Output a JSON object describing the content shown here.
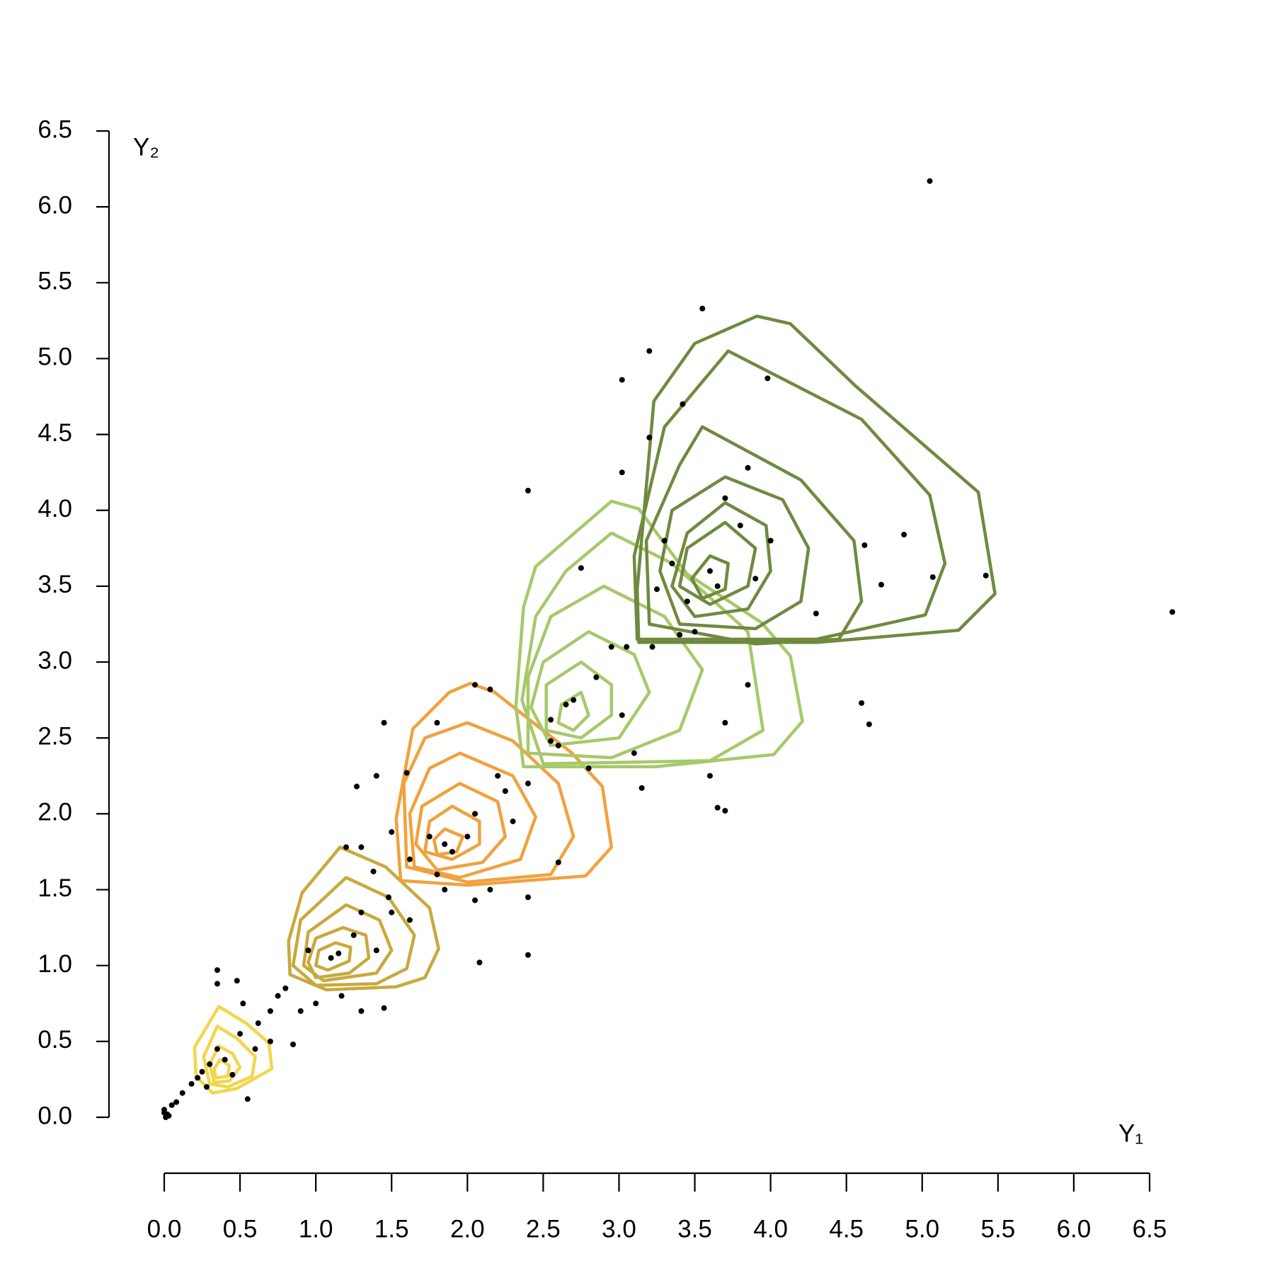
{
  "chart_data": {
    "type": "scatter",
    "x_label": "Y₁",
    "y_label": "Y₂",
    "xlim": [
      0,
      6.5
    ],
    "ylim": [
      0,
      6.5
    ],
    "xticks": [
      {
        "value": 0,
        "label": "0.0"
      },
      0.5,
      {
        "value": 1,
        "label": "1.0"
      },
      1.5,
      {
        "value": 2,
        "label": "2.0"
      },
      2.5,
      {
        "value": 3,
        "label": "3.0"
      },
      3.5,
      {
        "value": 4,
        "label": "4.0"
      },
      4.5,
      {
        "value": 5,
        "label": "5.0"
      },
      5.5,
      {
        "value": 6,
        "label": "6.0"
      },
      6.5
    ],
    "yticks": [
      {
        "value": 0,
        "label": "0.0"
      },
      0.5,
      {
        "value": 1,
        "label": "1.0"
      },
      1.5,
      {
        "value": 2,
        "label": "2.0"
      },
      2.5,
      {
        "value": 3,
        "label": "3.0"
      },
      3.5,
      {
        "value": 4,
        "label": "4.0"
      },
      4.5,
      {
        "value": 5,
        "label": "5.0"
      },
      5.5,
      {
        "value": 6,
        "label": "6.0"
      },
      6.5
    ],
    "points": {
      "color": "#000000",
      "x": [
        0.0,
        0.01,
        0.02,
        0.03,
        0.0,
        0.05,
        0.08,
        0.12,
        0.18,
        0.22,
        0.25,
        0.3,
        0.35,
        0.4,
        0.28,
        0.45,
        0.55,
        0.6,
        0.5,
        0.62,
        0.7,
        0.75,
        0.7,
        0.85,
        0.35,
        0.35,
        0.48,
        0.52,
        0.8,
        0.9,
        1.0,
        1.17,
        1.3,
        1.45,
        0.95,
        1.1,
        1.15,
        1.25,
        1.3,
        1.4,
        1.5,
        1.62,
        1.48,
        1.38,
        1.2,
        1.3,
        1.5,
        1.62,
        1.6,
        1.45,
        1.27,
        1.4,
        1.8,
        1.85,
        2.05,
        2.15,
        2.4,
        2.4,
        2.08,
        2.6,
        1.75,
        1.85,
        1.9,
        2.0,
        2.05,
        2.2,
        2.4,
        2.3,
        2.25,
        1.8,
        2.05,
        2.15,
        2.55,
        2.4,
        2.75,
        2.65,
        2.7,
        2.85,
        2.95,
        3.02,
        2.55,
        2.6,
        2.8,
        3.1,
        3.05,
        3.22,
        3.2,
        3.02,
        3.2,
        3.42,
        3.02,
        3.3,
        3.35,
        3.45,
        3.6,
        3.65,
        3.4,
        3.55,
        3.7,
        3.8,
        3.85,
        3.9,
        4.0,
        3.98,
        3.7,
        3.65,
        3.6,
        3.7,
        3.85,
        4.3,
        4.62,
        4.6,
        4.65,
        4.73,
        4.88,
        5.05,
        5.07,
        5.42,
        6.65,
        3.15,
        3.5,
        3.25
      ],
      "y": [
        0.05,
        0.0,
        0.02,
        0.01,
        0.03,
        0.08,
        0.1,
        0.16,
        0.22,
        0.26,
        0.3,
        0.35,
        0.45,
        0.38,
        0.2,
        0.28,
        0.12,
        0.45,
        0.55,
        0.62,
        0.7,
        0.8,
        0.5,
        0.48,
        0.97,
        0.88,
        0.9,
        0.75,
        0.85,
        0.7,
        0.75,
        0.8,
        0.7,
        0.72,
        1.1,
        1.05,
        1.08,
        1.2,
        1.35,
        1.1,
        1.35,
        1.3,
        1.45,
        1.62,
        1.78,
        1.78,
        1.88,
        1.7,
        2.27,
        2.6,
        2.18,
        2.25,
        1.6,
        1.5,
        1.43,
        1.5,
        1.45,
        1.07,
        1.02,
        1.68,
        1.85,
        1.8,
        1.75,
        1.85,
        2.0,
        2.25,
        2.2,
        1.95,
        2.15,
        2.6,
        2.85,
        2.82,
        2.62,
        4.13,
        3.62,
        2.72,
        2.75,
        2.9,
        3.1,
        2.65,
        2.48,
        2.45,
        2.3,
        2.4,
        3.1,
        3.1,
        4.48,
        4.86,
        5.05,
        4.7,
        4.25,
        3.8,
        3.65,
        3.4,
        3.6,
        3.5,
        3.18,
        5.33,
        4.08,
        3.9,
        4.28,
        3.55,
        3.8,
        4.87,
        2.02,
        2.04,
        2.25,
        2.6,
        2.85,
        3.32,
        3.77,
        2.73,
        2.59,
        3.51,
        3.84,
        6.17,
        3.56,
        3.57,
        3.33,
        2.17,
        3.2,
        3.48
      ]
    },
    "contours": [
      {
        "color": "#f3d54c",
        "levels": [
          {
            "x": [
              0.36,
              0.54,
              0.69,
              0.71,
              0.48,
              0.32,
              0.21,
              0.2
            ],
            "y": [
              0.73,
              0.62,
              0.49,
              0.32,
              0.19,
              0.16,
              0.27,
              0.46
            ]
          },
          {
            "x": [
              0.35,
              0.48,
              0.6,
              0.58,
              0.42,
              0.3,
              0.26
            ],
            "y": [
              0.6,
              0.52,
              0.4,
              0.27,
              0.2,
              0.22,
              0.4
            ]
          },
          {
            "x": [
              0.36,
              0.45,
              0.5,
              0.43,
              0.33,
              0.3
            ],
            "y": [
              0.47,
              0.42,
              0.33,
              0.24,
              0.23,
              0.35
            ]
          },
          {
            "x": [
              0.37,
              0.43,
              0.42,
              0.34,
              0.33
            ],
            "y": [
              0.38,
              0.34,
              0.27,
              0.26,
              0.32
            ]
          }
        ]
      },
      {
        "color": "#c8a93c",
        "levels": [
          {
            "x": [
              1.16,
              1.46,
              1.75,
              1.81,
              1.72,
              1.53,
              1.07,
              0.83,
              0.82,
              0.91
            ],
            "y": [
              1.78,
              1.65,
              1.38,
              1.11,
              0.92,
              0.86,
              0.84,
              0.94,
              1.16,
              1.48
            ]
          },
          {
            "x": [
              1.2,
              1.48,
              1.65,
              1.6,
              1.4,
              1.0,
              0.85,
              0.9
            ],
            "y": [
              1.58,
              1.45,
              1.2,
              0.98,
              0.88,
              0.87,
              1.0,
              1.3
            ]
          },
          {
            "x": [
              1.2,
              1.42,
              1.5,
              1.4,
              1.05,
              0.92,
              0.95
            ],
            "y": [
              1.4,
              1.3,
              1.1,
              0.95,
              0.9,
              1.0,
              1.22
            ]
          },
          {
            "x": [
              1.18,
              1.33,
              1.35,
              1.22,
              1.0,
              0.95,
              1.0
            ],
            "y": [
              1.25,
              1.2,
              1.05,
              0.95,
              0.92,
              1.02,
              1.18
            ]
          },
          {
            "x": [
              1.13,
              1.23,
              1.22,
              1.08,
              1.0,
              1.02
            ],
            "y": [
              1.15,
              1.12,
              1.03,
              0.97,
              1.0,
              1.1
            ]
          }
        ]
      },
      {
        "color": "#f0a23e",
        "levels": [
          {
            "x": [
              2.02,
              2.18,
              2.69,
              2.89,
              2.95,
              2.78,
              2.0,
              1.56,
              1.53,
              1.64,
              1.88
            ],
            "y": [
              2.86,
              2.8,
              2.4,
              2.18,
              1.78,
              1.59,
              1.53,
              1.56,
              1.97,
              2.56,
              2.8
            ]
          },
          {
            "x": [
              2.0,
              2.3,
              2.6,
              2.7,
              2.55,
              2.0,
              1.6,
              1.58,
              1.72
            ],
            "y": [
              2.6,
              2.48,
              2.2,
              1.85,
              1.6,
              1.55,
              1.65,
              2.2,
              2.5
            ]
          },
          {
            "x": [
              1.95,
              2.3,
              2.45,
              2.35,
              1.95,
              1.65,
              1.62,
              1.75
            ],
            "y": [
              2.4,
              2.25,
              1.98,
              1.7,
              1.58,
              1.65,
              2.0,
              2.3
            ]
          },
          {
            "x": [
              1.95,
              2.2,
              2.25,
              2.1,
              1.8,
              1.66,
              1.7
            ],
            "y": [
              2.2,
              2.08,
              1.85,
              1.68,
              1.63,
              1.8,
              2.05
            ]
          },
          {
            "x": [
              1.9,
              2.08,
              2.08,
              1.9,
              1.72,
              1.75
            ],
            "y": [
              2.05,
              1.95,
              1.8,
              1.7,
              1.75,
              1.95
            ]
          },
          {
            "x": [
              1.85,
              1.97,
              1.93,
              1.8,
              1.78
            ],
            "y": [
              1.9,
              1.85,
              1.75,
              1.73,
              1.83
            ]
          }
        ]
      },
      {
        "color": "#a6c96a",
        "levels": [
          {
            "x": [
              2.95,
              3.13,
              3.45,
              3.94,
              4.13,
              4.21,
              4.02,
              3.24,
              2.37,
              2.32,
              2.37,
              2.45
            ],
            "y": [
              4.06,
              4.01,
              3.58,
              3.26,
              3.04,
              2.61,
              2.39,
              2.31,
              2.31,
              2.71,
              3.36,
              3.63
            ]
          },
          {
            "x": [
              2.95,
              3.35,
              3.85,
              3.95,
              3.6,
              2.5,
              2.36,
              2.45,
              2.65
            ],
            "y": [
              3.85,
              3.65,
              3.2,
              2.55,
              2.35,
              2.33,
              2.75,
              3.3,
              3.6
            ]
          },
          {
            "x": [
              2.9,
              3.3,
              3.55,
              3.4,
              2.95,
              2.4,
              2.4,
              2.55
            ],
            "y": [
              3.5,
              3.3,
              2.95,
              2.55,
              2.37,
              2.4,
              2.9,
              3.3
            ]
          },
          {
            "x": [
              2.8,
              3.1,
              3.2,
              3.0,
              2.55,
              2.42,
              2.5
            ],
            "y": [
              3.2,
              3.05,
              2.8,
              2.5,
              2.45,
              2.7,
              3.0
            ]
          },
          {
            "x": [
              2.75,
              2.95,
              2.95,
              2.75,
              2.52,
              2.52
            ],
            "y": [
              3.0,
              2.85,
              2.65,
              2.5,
              2.55,
              2.85
            ]
          },
          {
            "x": [
              2.75,
              2.8,
              2.7,
              2.6,
              2.62
            ],
            "y": [
              2.8,
              2.65,
              2.55,
              2.6,
              2.72
            ]
          }
        ]
      },
      {
        "color": "#6f8a3f",
        "levels": [
          {
            "x": [
              3.91,
              4.13,
              4.56,
              5.37,
              5.48,
              5.24,
              4.31,
              3.13,
              3.12,
              3.23,
              3.5
            ],
            "y": [
              5.28,
              5.23,
              4.82,
              4.12,
              3.45,
              3.21,
              3.13,
              3.13,
              3.48,
              4.72,
              5.1
            ]
          },
          {
            "x": [
              3.72,
              4.6,
              5.05,
              5.15,
              5.02,
              4.3,
              3.12,
              3.1,
              3.3
            ],
            "y": [
              5.05,
              4.6,
              4.1,
              3.65,
              3.31,
              3.15,
              3.15,
              3.7,
              4.55
            ]
          },
          {
            "x": [
              3.55,
              4.2,
              4.55,
              4.6,
              4.45,
              3.9,
              3.2,
              3.18,
              3.4
            ],
            "y": [
              4.55,
              4.2,
              3.8,
              3.4,
              3.15,
              3.12,
              3.25,
              3.8,
              4.3
            ]
          },
          {
            "x": [
              3.7,
              4.08,
              4.25,
              4.2,
              3.9,
              3.4,
              3.27,
              3.35
            ],
            "y": [
              4.22,
              4.07,
              3.75,
              3.4,
              3.22,
              3.25,
              3.6,
              4.0
            ]
          },
          {
            "x": [
              3.7,
              3.97,
              4.0,
              3.85,
              3.5,
              3.35,
              3.45
            ],
            "y": [
              4.05,
              3.9,
              3.6,
              3.35,
              3.3,
              3.5,
              3.85
            ]
          },
          {
            "x": [
              3.7,
              3.9,
              3.85,
              3.6,
              3.4,
              3.45
            ],
            "y": [
              3.92,
              3.75,
              3.5,
              3.38,
              3.5,
              3.75
            ]
          },
          {
            "x": [
              3.6,
              3.72,
              3.7,
              3.55,
              3.48
            ],
            "y": [
              3.7,
              3.65,
              3.48,
              3.42,
              3.55
            ]
          }
        ]
      }
    ]
  }
}
